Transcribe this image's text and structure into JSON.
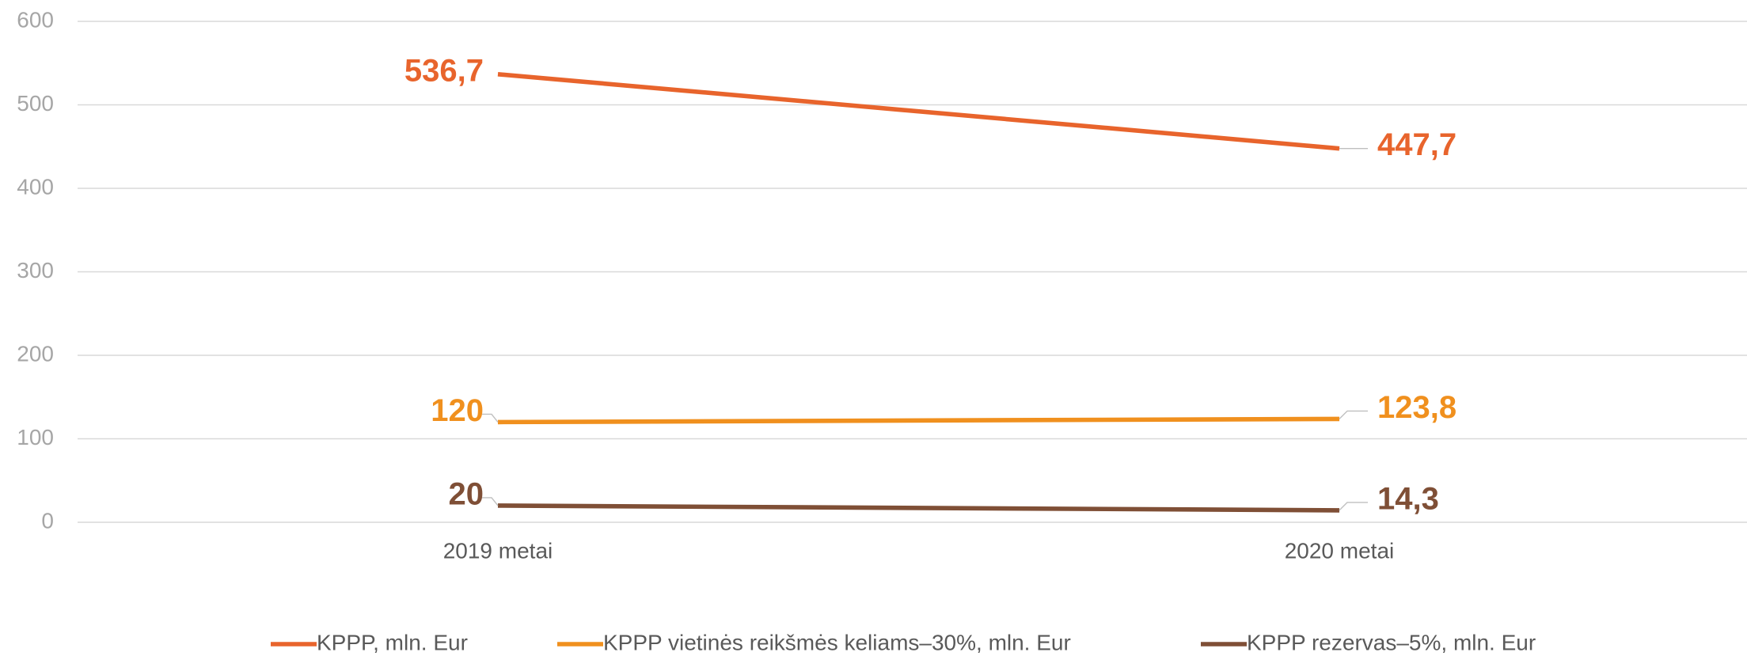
{
  "chart_data": {
    "type": "line",
    "categories": [
      "2019 metai",
      "2020 metai"
    ],
    "series": [
      {
        "name": "KPPP, mln. Eur",
        "color": "#e8642c",
        "values": [
          536.7,
          447.7
        ],
        "value_labels": [
          "536,7",
          "447,7"
        ]
      },
      {
        "name": "KPPP vietinės reikšmės keliams–30%, mln. Eur",
        "color": "#f0901e",
        "values": [
          120,
          123.8
        ],
        "value_labels": [
          "120",
          "123,8"
        ]
      },
      {
        "name": "KPPP rezervas–5%, mln. Eur",
        "color": "#7f4f36",
        "values": [
          20,
          14.3
        ],
        "value_labels": [
          "20",
          "14,3"
        ]
      }
    ],
    "ylim": [
      0,
      600
    ],
    "yticks": [
      0,
      100,
      200,
      300,
      400,
      500,
      600
    ],
    "grid": true,
    "legend": "bottom"
  }
}
